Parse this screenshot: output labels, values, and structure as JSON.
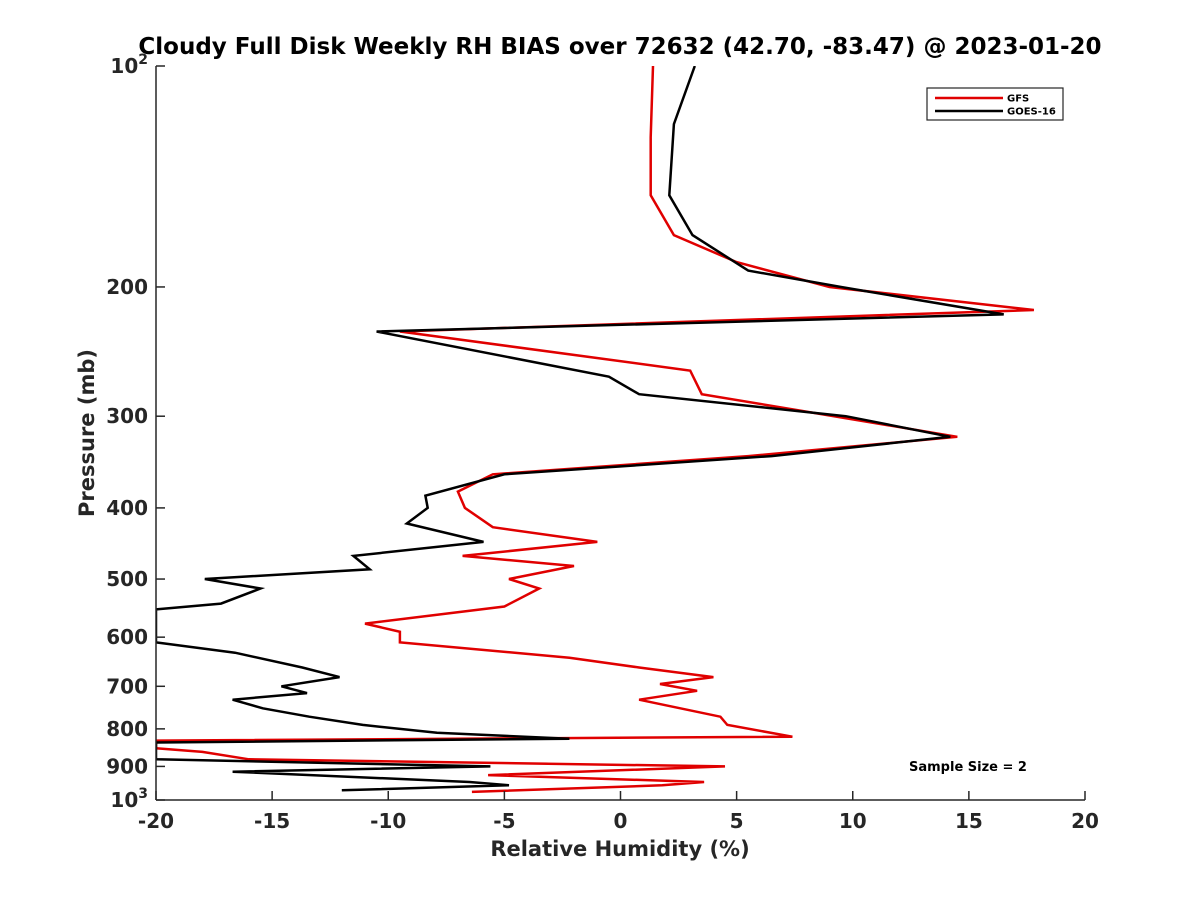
{
  "chart_data": {
    "type": "line",
    "title": "Cloudy Full Disk Weekly RH BIAS over 72632 (42.70, -83.47) @ 2023-01-20",
    "xlabel": "Relative Humidity (%)",
    "ylabel": "Pressure (mb)",
    "xlim": [
      -20,
      20
    ],
    "ylim": [
      100,
      1000
    ],
    "yscale": "log",
    "y_reversed": true,
    "x_ticks": [
      "-20",
      "-15",
      "-10",
      "-5",
      "0",
      "5",
      "10",
      "15",
      "20"
    ],
    "y_ticks": [
      {
        "value": 100,
        "base": "10",
        "exp": "2"
      },
      {
        "value": 200,
        "label": "200"
      },
      {
        "value": 300,
        "label": "300"
      },
      {
        "value": 400,
        "label": "400"
      },
      {
        "value": 500,
        "label": "500"
      },
      {
        "value": 600,
        "label": "600"
      },
      {
        "value": 700,
        "label": "700"
      },
      {
        "value": 800,
        "label": "800"
      },
      {
        "value": 900,
        "label": "900"
      },
      {
        "value": 1000,
        "base": "10",
        "exp": "3"
      }
    ],
    "grid": false,
    "legend_position": "top-right",
    "annotation": "Sample Size = 2",
    "series": [
      {
        "name": "GFS",
        "color": "#e00000",
        "points": [
          [
            1.4,
            100
          ],
          [
            1.3,
            125
          ],
          [
            1.3,
            150
          ],
          [
            2.3,
            170
          ],
          [
            5,
            185
          ],
          [
            9,
            200
          ],
          [
            17.8,
            215
          ],
          [
            -9.5,
            230
          ],
          [
            3,
            260
          ],
          [
            3.5,
            280
          ],
          [
            14.5,
            320
          ],
          [
            5.5,
            340
          ],
          [
            -5.5,
            360
          ],
          [
            -7,
            380
          ],
          [
            -6.7,
            400
          ],
          [
            -5.5,
            425
          ],
          [
            -1,
            445
          ],
          [
            -6.8,
            465
          ],
          [
            -2,
            480
          ],
          [
            -4.8,
            500
          ],
          [
            -3.5,
            515
          ],
          [
            -5,
            545
          ],
          [
            -11,
            575
          ],
          [
            -9.5,
            590
          ],
          [
            -9.5,
            610
          ],
          [
            -2.2,
            640
          ],
          [
            0.8,
            660
          ],
          [
            4,
            680
          ],
          [
            1.7,
            695
          ],
          [
            3.3,
            710
          ],
          [
            0.8,
            730
          ],
          [
            4.3,
            770
          ],
          [
            4.6,
            790
          ],
          [
            7.4,
            820
          ],
          [
            -20,
            830
          ],
          [
            -20,
            850
          ],
          [
            -18,
            860
          ],
          [
            -16,
            880
          ],
          [
            4.5,
            900
          ],
          [
            -5.7,
            925
          ],
          [
            3.6,
            945
          ],
          [
            1.8,
            955
          ],
          [
            -6.4,
            975
          ]
        ]
      },
      {
        "name": "GOES-16",
        "color": "#000000",
        "points": [
          [
            3.2,
            100
          ],
          [
            2.3,
            120
          ],
          [
            2.1,
            150
          ],
          [
            3.1,
            170
          ],
          [
            5.5,
            190
          ],
          [
            9.5,
            200
          ],
          [
            16.5,
            218
          ],
          [
            -10.5,
            230
          ],
          [
            -0.5,
            265
          ],
          [
            0.8,
            280
          ],
          [
            9.7,
            300
          ],
          [
            14.2,
            320
          ],
          [
            6.5,
            340
          ],
          [
            -5,
            360
          ],
          [
            -8.4,
            385
          ],
          [
            -8.3,
            400
          ],
          [
            -9.2,
            420
          ],
          [
            -5.9,
            445
          ],
          [
            -11.5,
            465
          ],
          [
            -10.8,
            485
          ],
          [
            -17.9,
            500
          ],
          [
            -15.5,
            515
          ],
          [
            -17.2,
            540
          ],
          [
            -20,
            550
          ],
          [
            -20,
            610
          ],
          [
            -16.6,
            630
          ],
          [
            -13.7,
            660
          ],
          [
            -12.1,
            680
          ],
          [
            -14.6,
            700
          ],
          [
            -13.5,
            715
          ],
          [
            -16.7,
            730
          ],
          [
            -15.4,
            750
          ],
          [
            -13.4,
            770
          ],
          [
            -11.1,
            790
          ],
          [
            -7.9,
            810
          ],
          [
            -2.2,
            825
          ],
          [
            -20,
            835
          ],
          [
            -20,
            880
          ],
          [
            -5.6,
            900
          ],
          [
            -16.7,
            915
          ],
          [
            -6.5,
            945
          ],
          [
            -4.8,
            955
          ],
          [
            -12,
            970
          ]
        ]
      }
    ]
  }
}
